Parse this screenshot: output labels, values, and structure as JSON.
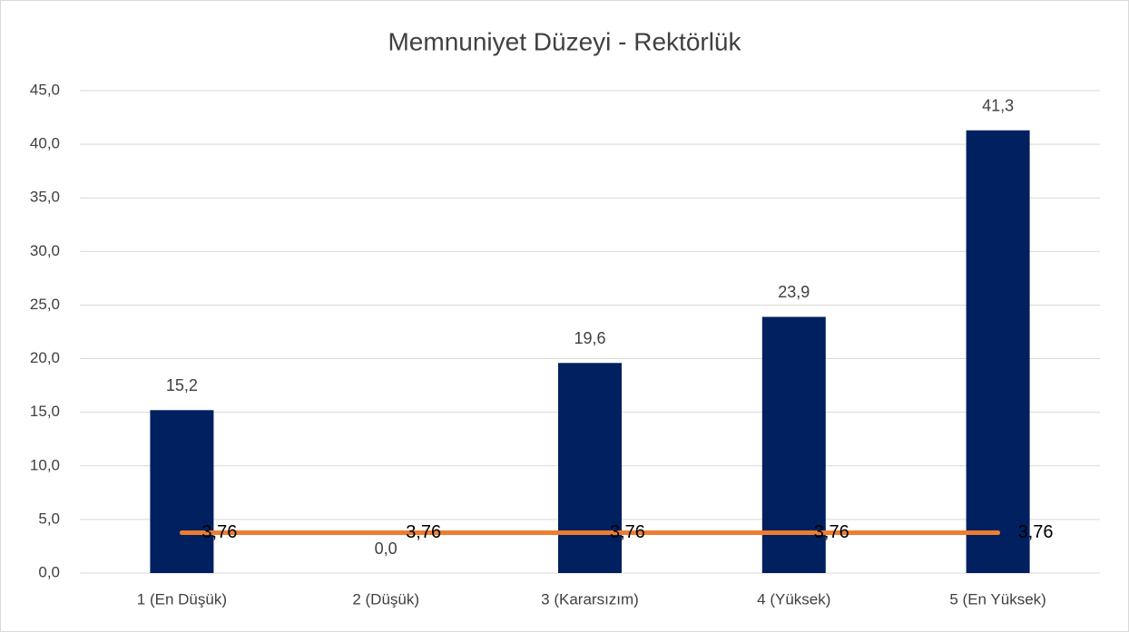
{
  "chart_data": {
    "type": "bar",
    "title": "Memnuniyet Düzeyi - Rektörlük",
    "categories": [
      "1 (En Düşük)",
      "2 (Düşük)",
      "3 (Kararsızım)",
      "4 (Yüksek)",
      "5 (En Yüksek)"
    ],
    "series": [
      {
        "type": "bar",
        "color": "#002060",
        "values": [
          15.2,
          0,
          19.6,
          23.9,
          41.3
        ],
        "value_labels": [
          "15,2",
          "0,0",
          "19,6",
          "23,9",
          "41,3"
        ]
      },
      {
        "type": "line",
        "color": "#ed7d31",
        "values": [
          3.76,
          3.76,
          3.76,
          3.76,
          3.76
        ],
        "value_labels": [
          "3,76",
          "3,76",
          "3,76",
          "3,76",
          "3,76"
        ]
      }
    ],
    "ylim": [
      0,
      45
    ],
    "yticks": [
      {
        "value": 0,
        "label": "0,0"
      },
      {
        "value": 5,
        "label": "5,0"
      },
      {
        "value": 10,
        "label": "10,0"
      },
      {
        "value": 15,
        "label": "15,0"
      },
      {
        "value": 20,
        "label": "20,0"
      },
      {
        "value": 25,
        "label": "25,0"
      },
      {
        "value": 30,
        "label": "30,0"
      },
      {
        "value": 35,
        "label": "35,0"
      },
      {
        "value": 40,
        "label": "40,0"
      },
      {
        "value": 45,
        "label": "45,0"
      }
    ],
    "grid": true
  }
}
